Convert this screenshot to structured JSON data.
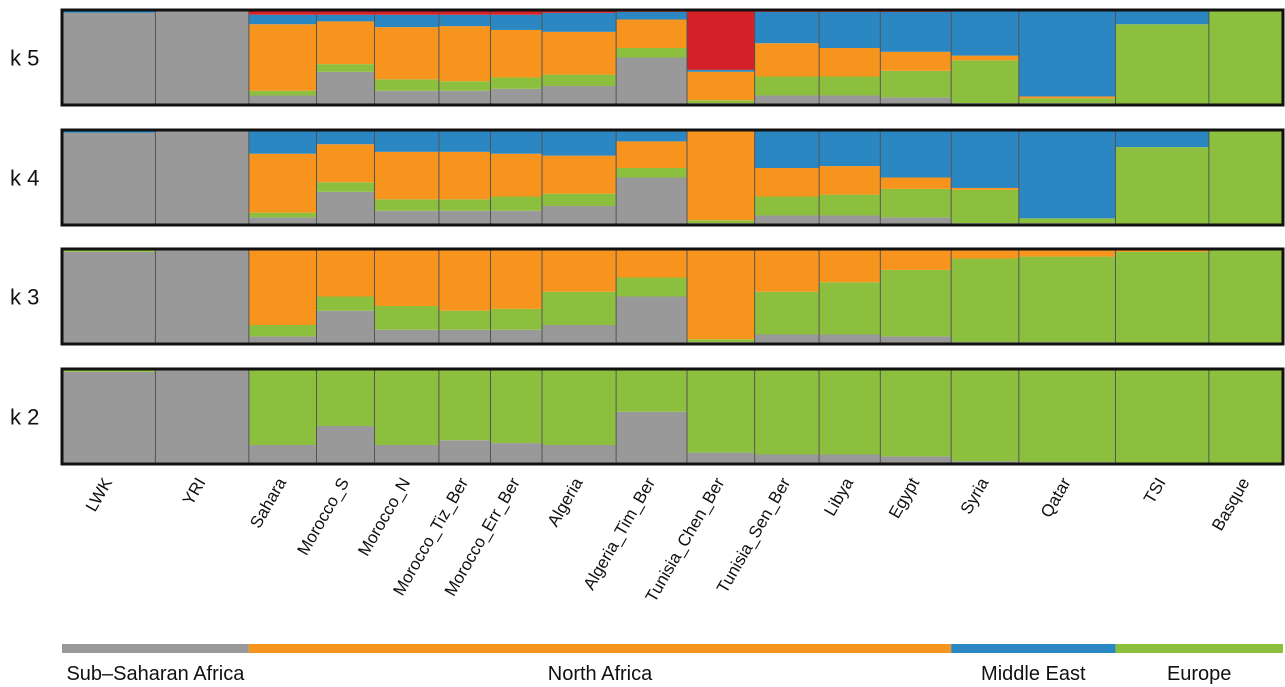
{
  "chart_data": {
    "type": "bar",
    "subtype": "stacked-admixture",
    "title": "",
    "xlabel": "",
    "ylabel": "",
    "ylim": [
      0,
      1
    ],
    "components": [
      {
        "key": "gray",
        "color": "#999999"
      },
      {
        "key": "green",
        "color": "#8dbf3f"
      },
      {
        "key": "orange",
        "color": "#f7941d"
      },
      {
        "key": "blue",
        "color": "#2b87c1"
      },
      {
        "key": "red",
        "color": "#d42027"
      }
    ],
    "populations": [
      {
        "name": "LWK",
        "weight": 1.45
      },
      {
        "name": "YRI",
        "weight": 1.45
      },
      {
        "name": "Sahara",
        "weight": 1.05
      },
      {
        "name": "Morocco_S",
        "weight": 0.9
      },
      {
        "name": "Morocco_N",
        "weight": 1.0
      },
      {
        "name": "Morocco_Tiz_Ber",
        "weight": 0.8
      },
      {
        "name": "Morocco_Err_Ber",
        "weight": 0.8
      },
      {
        "name": "Algeria",
        "weight": 1.15
      },
      {
        "name": "Algeria_Tim_Ber",
        "weight": 1.1
      },
      {
        "name": "Tunisia_Chen_Ber",
        "weight": 1.05
      },
      {
        "name": "Tunisia_Sen_Ber",
        "weight": 1.0
      },
      {
        "name": "Libya",
        "weight": 0.95
      },
      {
        "name": "Egypt",
        "weight": 1.1
      },
      {
        "name": "Syria",
        "weight": 1.05
      },
      {
        "name": "Qatar",
        "weight": 1.5
      },
      {
        "name": "TSI",
        "weight": 1.45
      },
      {
        "name": "Basque",
        "weight": 1.15
      }
    ],
    "panels": [
      {
        "label": "k 5",
        "order": [
          "gray",
          "green",
          "orange",
          "blue",
          "red"
        ],
        "values": [
          [
            0.97,
            0,
            0,
            0.03,
            0
          ],
          [
            1,
            0,
            0,
            0,
            0
          ],
          [
            0.1,
            0.05,
            0.7,
            0.1,
            0.05
          ],
          [
            0.35,
            0.08,
            0.45,
            0.07,
            0.05
          ],
          [
            0.15,
            0.12,
            0.55,
            0.13,
            0.05
          ],
          [
            0.15,
            0.1,
            0.58,
            0.12,
            0.05
          ],
          [
            0.17,
            0.12,
            0.5,
            0.16,
            0.05
          ],
          [
            0.2,
            0.12,
            0.45,
            0.2,
            0.03
          ],
          [
            0.5,
            0.1,
            0.3,
            0.08,
            0.02
          ],
          [
            0.02,
            0.03,
            0.3,
            0.02,
            0.63
          ],
          [
            0.1,
            0.2,
            0.35,
            0.33,
            0.02
          ],
          [
            0.1,
            0.2,
            0.3,
            0.38,
            0.02
          ],
          [
            0.08,
            0.28,
            0.2,
            0.42,
            0.02
          ],
          [
            0.02,
            0.45,
            0.05,
            0.47,
            0.01
          ],
          [
            0.02,
            0.05,
            0.02,
            0.91,
            0
          ],
          [
            0,
            0.85,
            0,
            0.15,
            0
          ],
          [
            0,
            1,
            0,
            0,
            0
          ]
        ]
      },
      {
        "label": "k 4",
        "order": [
          "gray",
          "green",
          "orange",
          "blue"
        ],
        "values": [
          [
            0.97,
            0,
            0,
            0.03
          ],
          [
            1,
            0,
            0,
            0
          ],
          [
            0.08,
            0.05,
            0.62,
            0.25
          ],
          [
            0.35,
            0.1,
            0.4,
            0.15
          ],
          [
            0.15,
            0.12,
            0.5,
            0.23
          ],
          [
            0.15,
            0.12,
            0.5,
            0.23
          ],
          [
            0.15,
            0.15,
            0.45,
            0.25
          ],
          [
            0.2,
            0.13,
            0.4,
            0.27
          ],
          [
            0.5,
            0.1,
            0.28,
            0.12
          ],
          [
            0.02,
            0.03,
            0.95,
            0
          ],
          [
            0.1,
            0.2,
            0.3,
            0.4
          ],
          [
            0.1,
            0.22,
            0.3,
            0.38
          ],
          [
            0.08,
            0.3,
            0.12,
            0.5
          ],
          [
            0.02,
            0.35,
            0.02,
            0.61
          ],
          [
            0.02,
            0.05,
            0,
            0.93
          ],
          [
            0,
            0.82,
            0,
            0.18
          ],
          [
            0,
            1,
            0,
            0
          ]
        ]
      },
      {
        "label": "k 3",
        "order": [
          "gray",
          "green",
          "orange"
        ],
        "values": [
          [
            0.97,
            0.02,
            0.01
          ],
          [
            1,
            0,
            0
          ],
          [
            0.08,
            0.12,
            0.8
          ],
          [
            0.35,
            0.15,
            0.5
          ],
          [
            0.15,
            0.25,
            0.6
          ],
          [
            0.15,
            0.2,
            0.65
          ],
          [
            0.15,
            0.22,
            0.63
          ],
          [
            0.2,
            0.35,
            0.45
          ],
          [
            0.5,
            0.2,
            0.3
          ],
          [
            0.02,
            0.03,
            0.95
          ],
          [
            0.1,
            0.45,
            0.45
          ],
          [
            0.1,
            0.55,
            0.35
          ],
          [
            0.08,
            0.7,
            0.22
          ],
          [
            0.02,
            0.88,
            0.1
          ],
          [
            0.02,
            0.9,
            0.08
          ],
          [
            0,
            0.97,
            0.03
          ],
          [
            0,
            1,
            0
          ]
        ]
      },
      {
        "label": "k 2",
        "order": [
          "gray",
          "green"
        ],
        "values": [
          [
            0.97,
            0.03
          ],
          [
            1,
            0
          ],
          [
            0.2,
            0.8
          ],
          [
            0.4,
            0.6
          ],
          [
            0.2,
            0.8
          ],
          [
            0.25,
            0.75
          ],
          [
            0.22,
            0.78
          ],
          [
            0.2,
            0.8
          ],
          [
            0.55,
            0.45
          ],
          [
            0.12,
            0.88
          ],
          [
            0.1,
            0.9
          ],
          [
            0.1,
            0.9
          ],
          [
            0.08,
            0.92
          ],
          [
            0.03,
            0.97
          ],
          [
            0.02,
            0.98
          ],
          [
            0,
            1
          ],
          [
            0,
            1
          ]
        ]
      }
    ],
    "regions": [
      {
        "name": "Sub–Saharan Africa",
        "color": "#999999",
        "from": 0,
        "to": 1
      },
      {
        "name": "North Africa",
        "color": "#f7941d",
        "from": 2,
        "to": 12
      },
      {
        "name": "Middle East",
        "color": "#2b87c1",
        "from": 13,
        "to": 14
      },
      {
        "name": "Europe",
        "color": "#8dbf3f",
        "from": 15,
        "to": 16
      }
    ]
  }
}
